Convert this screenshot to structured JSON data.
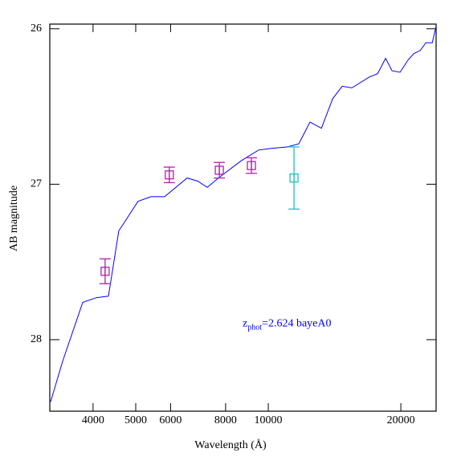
{
  "chart_data": {
    "type": "line",
    "x_label": "Wavelength (Å)",
    "y_label": "AB magnitude",
    "xlim": [
      3190,
      24050
    ],
    "ylim": [
      28.46,
      25.97
    ],
    "log_x": true,
    "xticks": [
      4000,
      5000,
      6000,
      8000,
      10000,
      20000
    ],
    "yticks": [
      26,
      27,
      28
    ],
    "annotation": {
      "main": "z",
      "sub": "phot",
      "rest": "=2.624 bayeA0",
      "x": 10000,
      "y": 27.9,
      "color": "#0000ff"
    },
    "model": {
      "color": "#0000ff",
      "x": [
        3203,
        3410,
        3790,
        4069,
        4334,
        4576,
        5062,
        5415,
        5817,
        6541,
        6911,
        7269,
        7706,
        8670,
        9508,
        10127,
        11060,
        11730,
        12440,
        13200,
        14000,
        14720,
        15480,
        16980,
        17710,
        18470,
        19100,
        19920,
        20780,
        21400,
        22130,
        22790,
        23570,
        24070
      ],
      "values": [
        28.4,
        28.14,
        27.76,
        27.73,
        27.72,
        27.3,
        27.11,
        27.08,
        27.08,
        26.96,
        26.98,
        27.02,
        26.96,
        26.85,
        26.78,
        26.77,
        26.76,
        26.74,
        26.6,
        26.64,
        26.45,
        26.37,
        26.38,
        26.31,
        26.29,
        26.19,
        26.27,
        26.28,
        26.2,
        26.16,
        26.14,
        26.09,
        26.09,
        25.98
      ]
    },
    "points": [
      {
        "color": "#b020b0",
        "x": [
          4260,
          5960,
          7740,
          9155
        ],
        "values": [
          27.56,
          26.94,
          26.91,
          26.88
        ],
        "errors": [
          0.08,
          0.05,
          0.05,
          0.05
        ]
      },
      {
        "color": "#20c0c0",
        "x": [
          11440
        ],
        "values": [
          26.96
        ],
        "errors": [
          0.2
        ]
      }
    ]
  }
}
